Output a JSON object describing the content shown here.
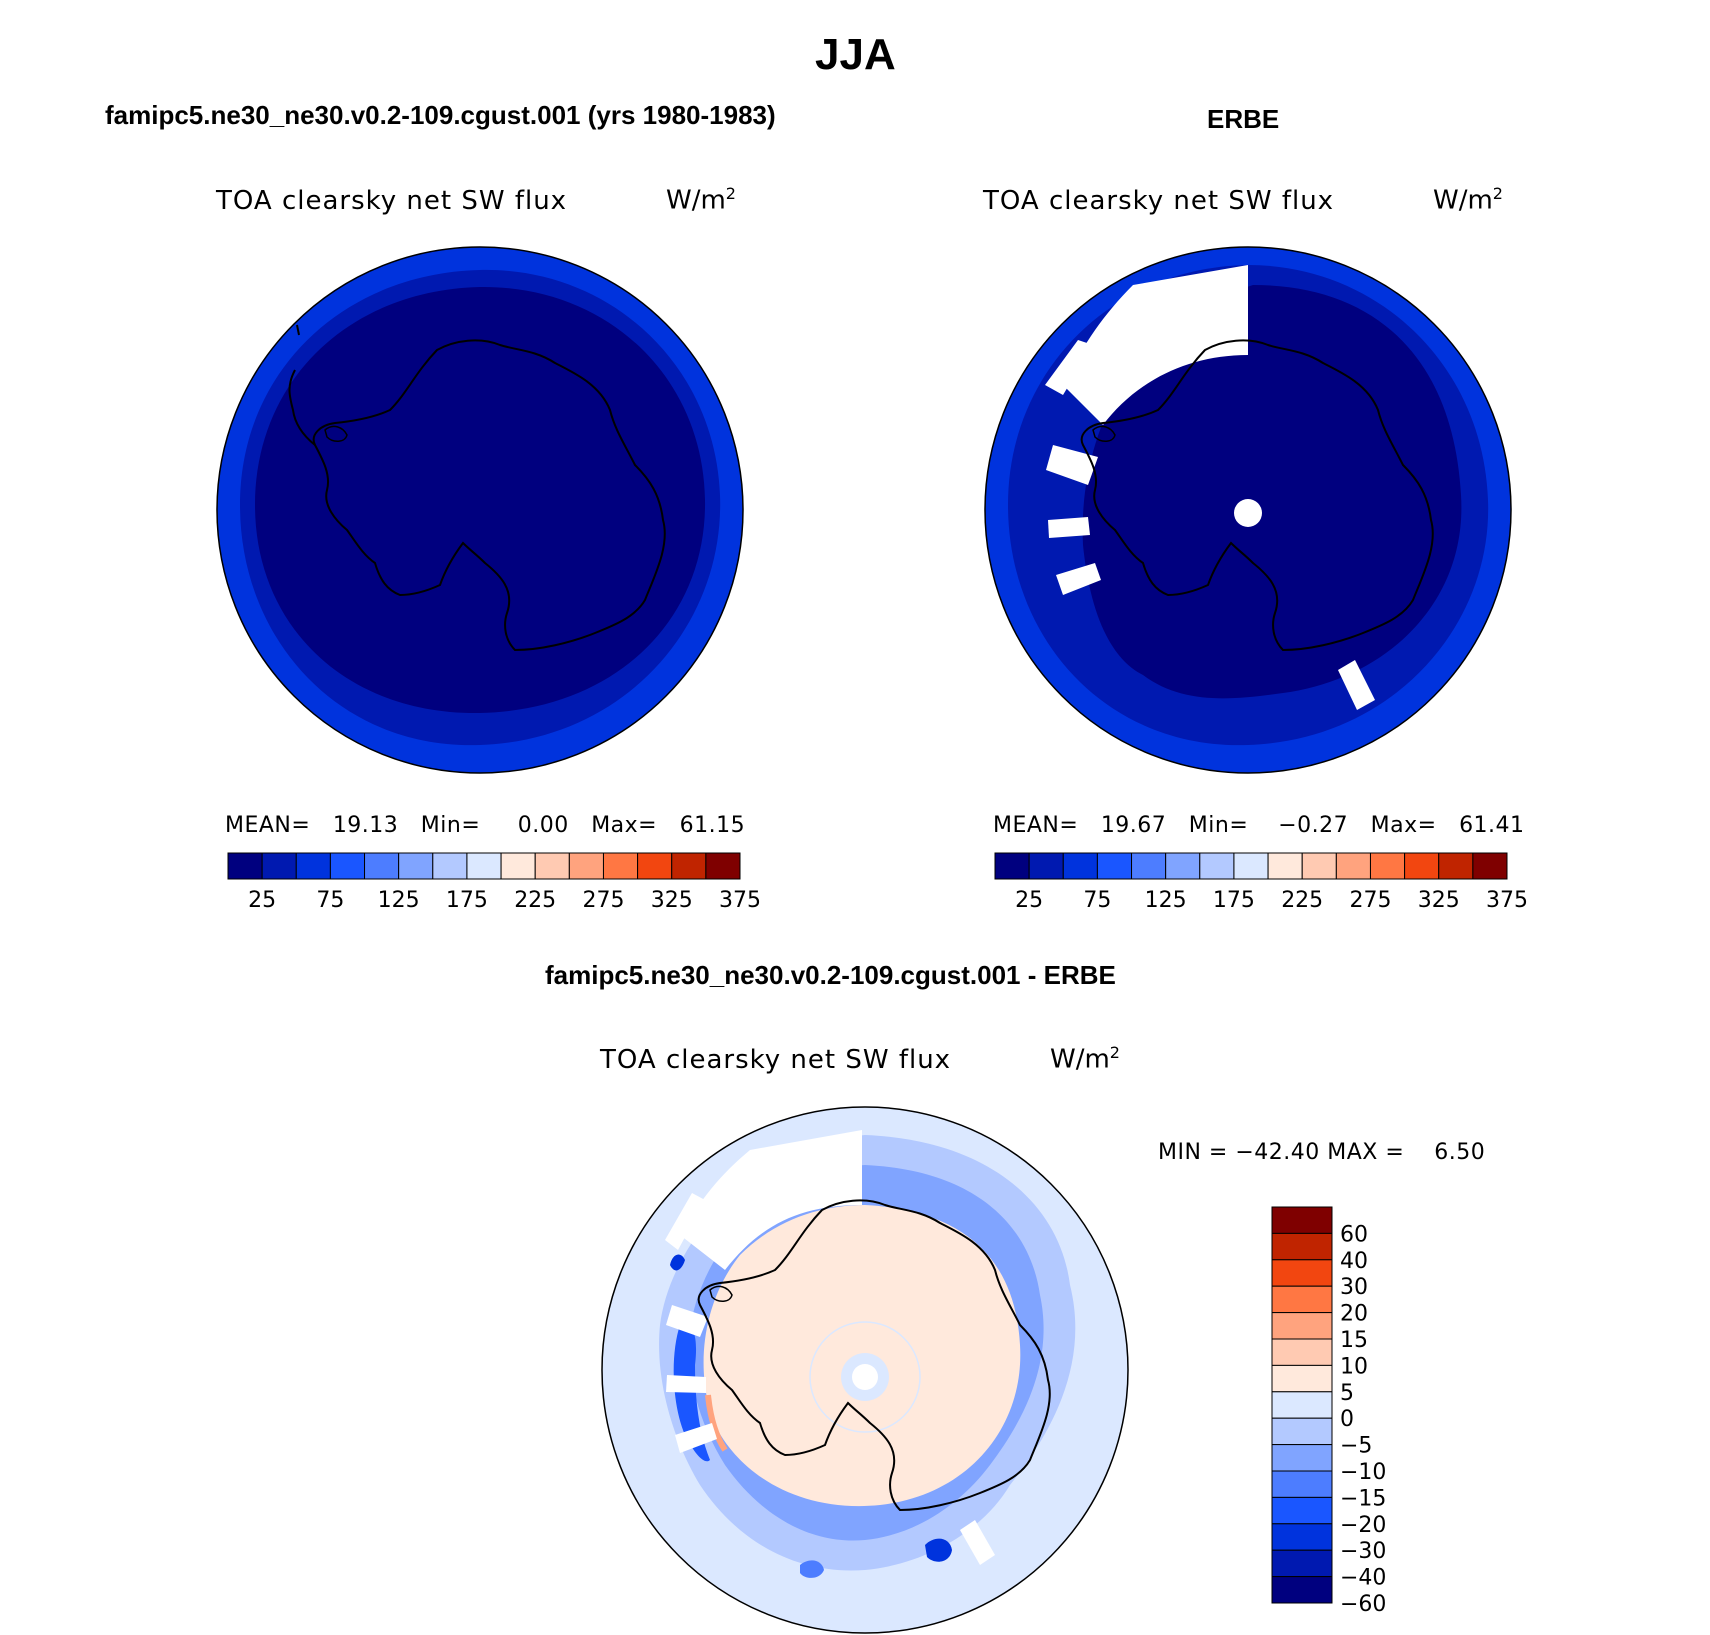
{
  "title": "JJA",
  "panels": [
    {
      "title": "famipc5.ne30_ne30.v0.2-109.cgust.001 (yrs 1980-1983)",
      "variable": "TOA clearsky net SW flux",
      "units_base": "W/m",
      "units_exp": "2",
      "stats": {
        "mean_label": "MEAN=",
        "mean": "19.13",
        "min_label": "Min=",
        "min": "0.00",
        "max_label": "Max=",
        "max": "61.15"
      }
    },
    {
      "title": "ERBE",
      "variable": "TOA clearsky net SW flux",
      "units_base": "W/m",
      "units_exp": "2",
      "stats": {
        "mean_label": "MEAN=",
        "mean": "19.67",
        "min_label": "Min=",
        "min": "−0.27",
        "max_label": "Max=",
        "max": "61.41"
      }
    },
    {
      "title": "famipc5.ne30_ne30.v0.2-109.cgust.001 - ERBE",
      "variable": "TOA clearsky net SW flux",
      "units_base": "W/m",
      "units_exp": "2",
      "minmax_text": "MIN = −42.40 MAX =    6.50"
    }
  ],
  "colorbar_top": {
    "colors": [
      "#00007f",
      "#0019b0",
      "#0033dd",
      "#1a56ff",
      "#4d7dff",
      "#80a4ff",
      "#b3c9ff",
      "#dbe8ff",
      "#ffe9dc",
      "#ffcab2",
      "#ffa37e",
      "#ff7743",
      "#f24610",
      "#c02400",
      "#7f0000"
    ],
    "labels": [
      "25",
      "75",
      "125",
      "175",
      "225",
      "275",
      "325",
      "375"
    ]
  },
  "colorbar_diff": {
    "colors": [
      "#00007f",
      "#0019b0",
      "#0033dd",
      "#1a56ff",
      "#4d7dff",
      "#80a4ff",
      "#b3c9ff",
      "#dbe8ff",
      "#ffe9dc",
      "#ffcab2",
      "#ffa37e",
      "#ff7743",
      "#f24610",
      "#c02400",
      "#7f0000"
    ],
    "labels": [
      "60",
      "40",
      "30",
      "20",
      "15",
      "10",
      "5",
      "0",
      "−5",
      "−10",
      "−15",
      "−20",
      "−30",
      "−40",
      "−60"
    ]
  }
}
